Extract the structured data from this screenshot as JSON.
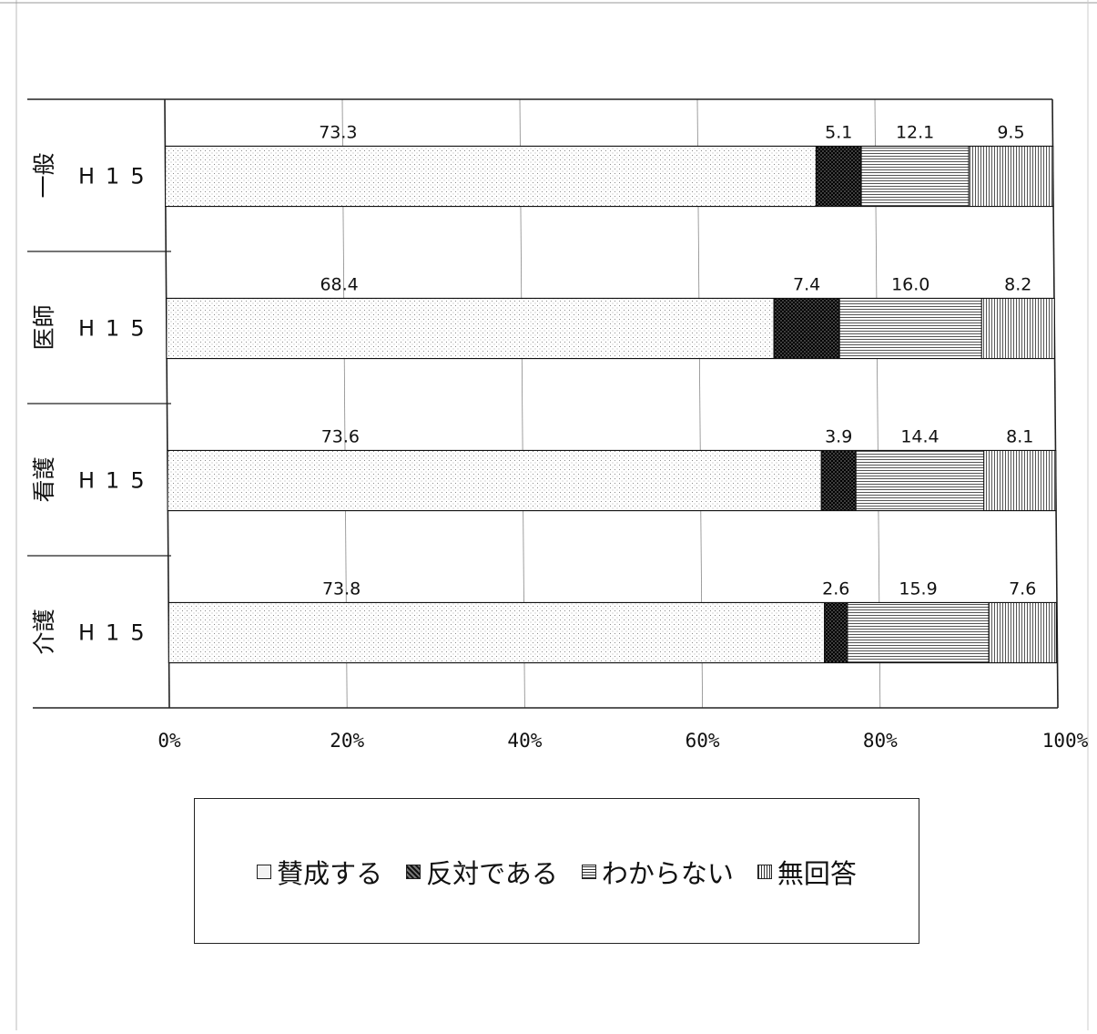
{
  "chart_data": {
    "type": "bar",
    "orientation": "horizontal",
    "stacked": "percent",
    "categories": [
      "一般",
      "医師",
      "看護",
      "介護"
    ],
    "row_labels": [
      "H15",
      "H15",
      "H15",
      "H15"
    ],
    "series": [
      {
        "name": "賛成する",
        "values": [
          73.3,
          68.4,
          73.6,
          73.8
        ]
      },
      {
        "name": "反対である",
        "values": [
          5.1,
          7.4,
          3.9,
          2.6
        ]
      },
      {
        "name": "わからない",
        "values": [
          12.1,
          16.0,
          14.4,
          15.9
        ]
      },
      {
        "name": "無回答",
        "values": [
          9.5,
          8.2,
          8.1,
          7.6
        ]
      }
    ],
    "data_labels": [
      [
        "73.3",
        "5.1",
        "12.1",
        "9.5"
      ],
      [
        "68.4",
        "7.4",
        "16.0",
        "8.2"
      ],
      [
        "73.6",
        "3.9",
        "14.4",
        "8.1"
      ],
      [
        "73.8",
        "2.6",
        "15.9",
        "7.6"
      ]
    ],
    "x_ticks": [
      "0%",
      "20%",
      "40%",
      "60%",
      "80%",
      "100%"
    ],
    "xlim": [
      0,
      100
    ],
    "grid": true,
    "legend_position": "bottom",
    "title": "",
    "xlabel": "",
    "ylabel": ""
  },
  "legend": {
    "items": [
      "賛成する",
      "反対である",
      "わからない",
      "無回答"
    ]
  }
}
